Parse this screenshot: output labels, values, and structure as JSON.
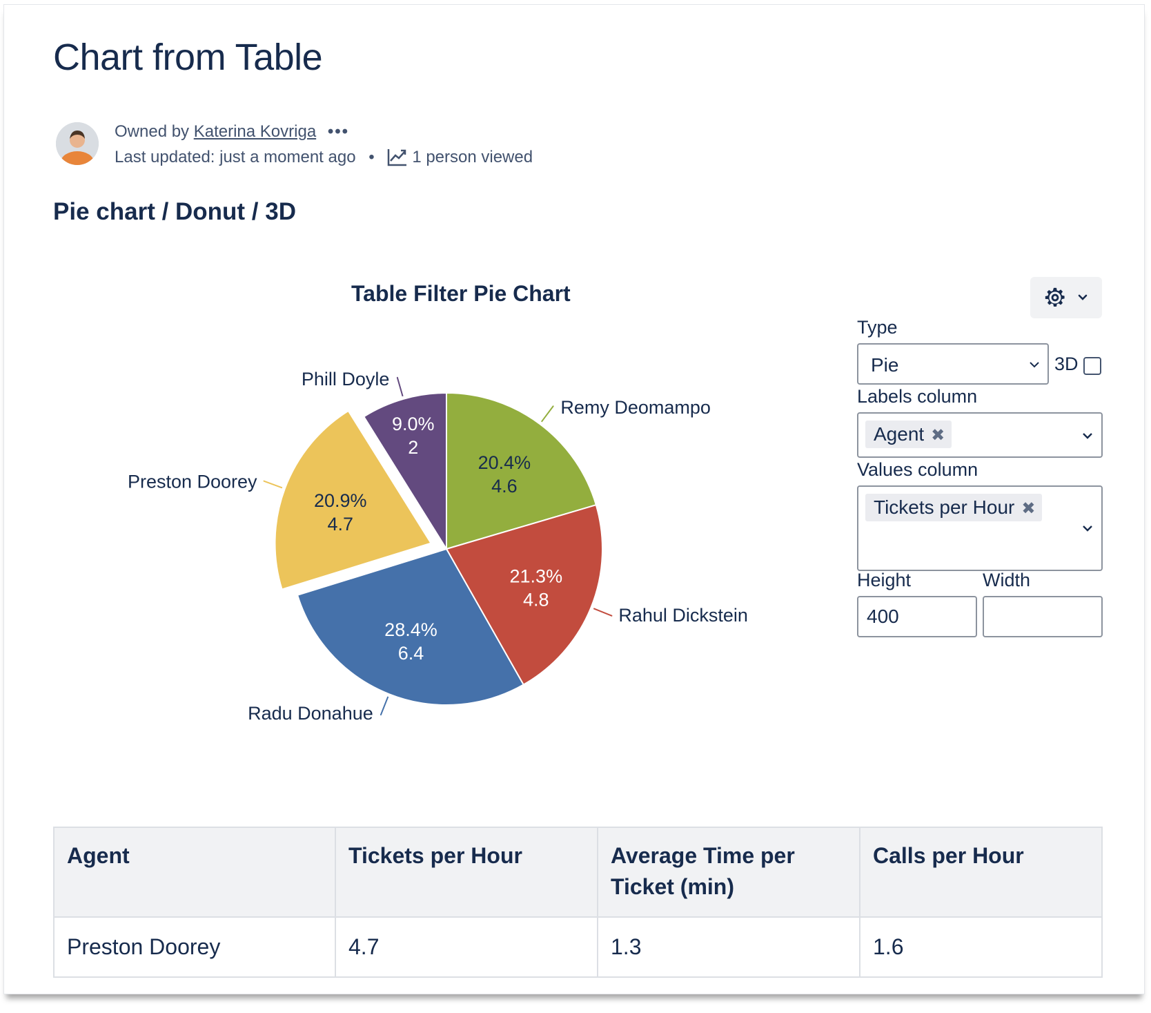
{
  "page": {
    "title": "Chart from Table",
    "owned_by_prefix": "Owned by",
    "owner": "Katerina Kovriga",
    "more": "•••",
    "last_updated": "Last updated: just a moment ago",
    "separator": "•",
    "viewed": "1 person viewed",
    "section_title": "Pie chart / Donut / 3D"
  },
  "chart_data": {
    "type": "pie",
    "title": "Table Filter Pie Chart",
    "slices": [
      {
        "label": "Remy Deomampo",
        "value": 4.6,
        "percent": "20.4%",
        "color": "#93ae3e",
        "text_color": "#172b4d"
      },
      {
        "label": "Rahul Dickstein",
        "value": 4.8,
        "percent": "21.3%",
        "color": "#c24c3e",
        "text_color": "#ffffff"
      },
      {
        "label": "Radu Donahue",
        "value": 6.4,
        "percent": "28.4%",
        "color": "#4571aa",
        "text_color": "#ffffff"
      },
      {
        "label": "Preston Doorey",
        "value": 4.7,
        "percent": "20.9%",
        "color": "#ecc45a",
        "text_color": "#172b4d",
        "exploded": true
      },
      {
        "label": "Phill Doyle",
        "value": 2,
        "percent": "9.0%",
        "color": "#634a7f",
        "text_color": "#ffffff"
      }
    ]
  },
  "settings": {
    "gear_icon": "gear-icon",
    "type_label": "Type",
    "type_value": "Pie",
    "three_d_label": "3D",
    "three_d_checked": false,
    "labels_column_label": "Labels column",
    "labels_column_tag": "Agent",
    "values_column_label": "Values column",
    "values_column_tag": "Tickets per Hour",
    "height_label": "Height",
    "height_value": "400",
    "width_label": "Width",
    "width_value": ""
  },
  "table": {
    "headers": [
      "Agent",
      "Tickets per Hour",
      "Average Time per Ticket (min)",
      "Calls per Hour"
    ],
    "rows": [
      [
        "Preston Doorey",
        "4.7",
        "1.3",
        "1.6"
      ]
    ]
  }
}
